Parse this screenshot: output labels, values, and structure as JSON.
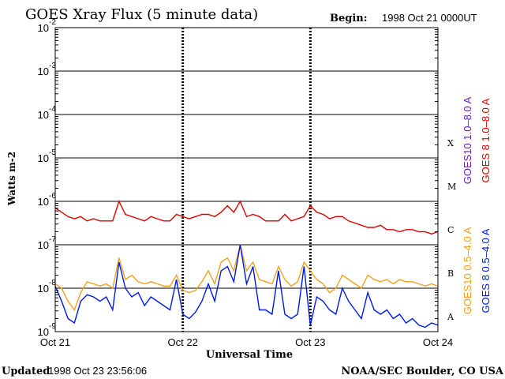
{
  "chart_data": {
    "type": "line",
    "title": "GOES Xray Flux (5 minute data)",
    "begin_label": "Begin:",
    "begin_value": "1998 Oct 21 0000UT",
    "ylabel": "Watts m-2",
    "xlabel": "Universal Time",
    "y_scale": "log",
    "ylim_exponents": [
      -9,
      -2
    ],
    "y_tick_base": "10",
    "y_tick_exponents": [
      "-2",
      "-3",
      "-4",
      "-5",
      "-6",
      "-7",
      "-8",
      "-9"
    ],
    "x_tick_labels": [
      "Oct 21",
      "Oct 22",
      "Oct 23",
      "Oct 24"
    ],
    "flare_classes": [
      {
        "label": "X",
        "exp": -4
      },
      {
        "label": "M",
        "exp": -5
      },
      {
        "label": "C",
        "exp": -6
      },
      {
        "label": "B",
        "exp": -7
      },
      {
        "label": "A",
        "exp": -8
      }
    ],
    "colors": {
      "goes10_long": "#6a1fb0",
      "goes8_long": "#dd0000",
      "goes10_short": "#f2a01c",
      "goes8_short": "#0019e6"
    },
    "legend": [
      {
        "label": "GOES10 1.0–8.0 A",
        "color": "#6a1fb0"
      },
      {
        "label": "GOES 8 1.0–8.0 A",
        "color": "#dd0000"
      },
      {
        "label": "GOES10 0.5–4.0 A",
        "color": "#f2a01c"
      },
      {
        "label": "GOES 8 0.5–4.0 A",
        "color": "#0019e6"
      }
    ],
    "series": [
      {
        "name": "GOES 8 1.0–8.0 A",
        "color": "#dd0000",
        "x": [
          0,
          0.05,
          0.1,
          0.15,
          0.2,
          0.25,
          0.3,
          0.35,
          0.4,
          0.45,
          0.5,
          0.55,
          0.6,
          0.65,
          0.7,
          0.75,
          0.8,
          0.85,
          0.9,
          0.95,
          1.0,
          1.05,
          1.1,
          1.15,
          1.2,
          1.25,
          1.3,
          1.35,
          1.4,
          1.45,
          1.5,
          1.55,
          1.6,
          1.65,
          1.7,
          1.75,
          1.8,
          1.85,
          1.9,
          1.95,
          2.0,
          2.05,
          2.1,
          2.15,
          2.2,
          2.25,
          2.3,
          2.35,
          2.4,
          2.45,
          2.5,
          2.55,
          2.6,
          2.65,
          2.7,
          2.75,
          2.8,
          2.85,
          2.9,
          2.95,
          3.0
        ],
        "y": [
          -6.15,
          -6.25,
          -6.35,
          -6.4,
          -6.35,
          -6.45,
          -6.4,
          -6.45,
          -6.45,
          -6.45,
          -6.0,
          -6.3,
          -6.35,
          -6.4,
          -6.45,
          -6.35,
          -6.4,
          -6.45,
          -6.45,
          -6.3,
          -6.35,
          -6.4,
          -6.35,
          -6.3,
          -6.3,
          -6.35,
          -6.25,
          -6.1,
          -6.25,
          -6.0,
          -6.35,
          -6.3,
          -6.35,
          -6.45,
          -6.45,
          -6.45,
          -6.3,
          -6.45,
          -6.4,
          -6.35,
          -6.1,
          -6.25,
          -6.3,
          -6.4,
          -6.35,
          -6.35,
          -6.45,
          -6.5,
          -6.55,
          -6.6,
          -6.6,
          -6.55,
          -6.65,
          -6.65,
          -6.7,
          -6.65,
          -6.65,
          -6.7,
          -6.7,
          -6.75,
          -6.7
        ]
      },
      {
        "name": "GOES10 0.5–4.0 A",
        "color": "#f2a01c",
        "x": [
          0,
          0.05,
          0.1,
          0.15,
          0.2,
          0.25,
          0.3,
          0.35,
          0.4,
          0.45,
          0.5,
          0.55,
          0.6,
          0.65,
          0.7,
          0.75,
          0.8,
          0.85,
          0.9,
          0.95,
          1.0,
          1.05,
          1.1,
          1.15,
          1.2,
          1.25,
          1.3,
          1.35,
          1.4,
          1.45,
          1.5,
          1.55,
          1.6,
          1.65,
          1.7,
          1.75,
          1.8,
          1.85,
          1.9,
          1.95,
          2.0,
          2.05,
          2.1,
          2.15,
          2.2,
          2.25,
          2.3,
          2.35,
          2.4,
          2.45,
          2.5,
          2.55,
          2.6,
          2.65,
          2.7,
          2.75,
          2.8,
          2.85,
          2.9,
          2.95,
          3.0
        ],
        "y": [
          -7.9,
          -8.0,
          -8.3,
          -8.5,
          -8.1,
          -7.85,
          -7.9,
          -7.95,
          -7.9,
          -8.0,
          -7.3,
          -7.8,
          -7.7,
          -7.85,
          -7.9,
          -7.85,
          -7.9,
          -7.95,
          -7.95,
          -7.7,
          -8.05,
          -8.1,
          -8.05,
          -7.85,
          -7.6,
          -7.9,
          -7.4,
          -7.3,
          -7.6,
          -7.0,
          -7.6,
          -7.4,
          -7.8,
          -7.85,
          -7.9,
          -7.5,
          -7.8,
          -7.95,
          -7.85,
          -7.4,
          -7.6,
          -7.8,
          -7.9,
          -8.1,
          -8.0,
          -7.7,
          -7.8,
          -7.9,
          -8.0,
          -7.7,
          -7.8,
          -7.85,
          -7.8,
          -7.9,
          -7.8,
          -7.85,
          -7.85,
          -7.9,
          -7.95,
          -7.9,
          -7.95
        ]
      },
      {
        "name": "GOES 8 0.5–4.0 A",
        "color": "#0019e6",
        "x": [
          0,
          0.05,
          0.1,
          0.15,
          0.2,
          0.25,
          0.3,
          0.35,
          0.4,
          0.45,
          0.5,
          0.55,
          0.6,
          0.65,
          0.7,
          0.75,
          0.8,
          0.85,
          0.9,
          0.95,
          1.0,
          1.05,
          1.1,
          1.15,
          1.2,
          1.25,
          1.3,
          1.35,
          1.4,
          1.45,
          1.5,
          1.55,
          1.6,
          1.65,
          1.7,
          1.75,
          1.8,
          1.85,
          1.9,
          1.95,
          2.0,
          2.05,
          2.1,
          2.15,
          2.2,
          2.25,
          2.3,
          2.35,
          2.4,
          2.45,
          2.5,
          2.55,
          2.6,
          2.65,
          2.7,
          2.75,
          2.8,
          2.85,
          2.9,
          2.95,
          3.0
        ],
        "y": [
          -7.95,
          -8.3,
          -8.7,
          -8.8,
          -8.3,
          -8.15,
          -8.2,
          -8.3,
          -8.2,
          -8.5,
          -7.4,
          -8.0,
          -8.2,
          -8.1,
          -8.4,
          -8.2,
          -8.3,
          -8.4,
          -8.5,
          -7.8,
          -8.6,
          -8.7,
          -8.55,
          -8.3,
          -7.9,
          -8.3,
          -7.6,
          -7.5,
          -7.85,
          -7.0,
          -7.9,
          -7.5,
          -8.5,
          -8.5,
          -8.6,
          -7.6,
          -8.6,
          -8.7,
          -8.6,
          -7.5,
          -8.85,
          -8.2,
          -8.3,
          -8.5,
          -8.6,
          -8.0,
          -8.3,
          -8.5,
          -8.7,
          -8.1,
          -8.5,
          -8.6,
          -8.5,
          -8.7,
          -8.6,
          -8.8,
          -8.7,
          -8.85,
          -8.9,
          -8.8,
          -8.85
        ]
      }
    ],
    "grid": true
  },
  "footer": {
    "updated_label": "Updated",
    "updated_value": "1998 Oct 23 23:56:06",
    "credit": "NOAA/SEC Boulder, CO USA"
  }
}
